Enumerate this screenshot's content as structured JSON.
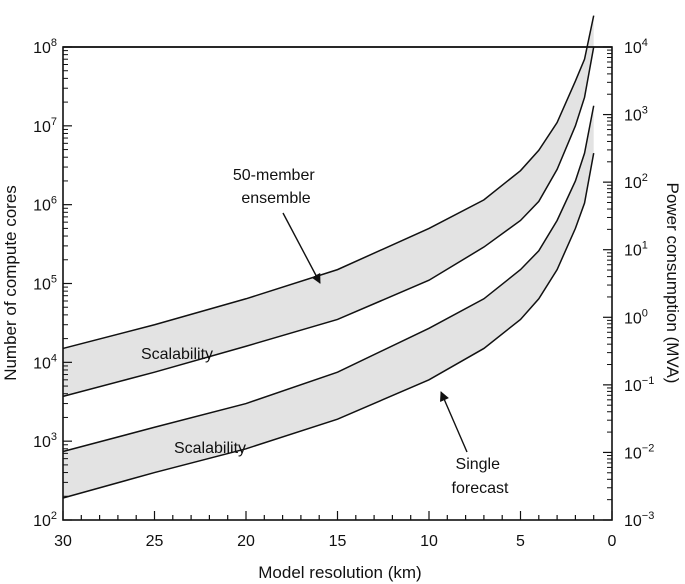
{
  "chart_data": {
    "type": "area",
    "xlabel": "Model resolution (km)",
    "ylabel": "Number of compute cores",
    "y2label": "Power consumption (MVA)",
    "xlim": [
      30,
      0
    ],
    "ylim": [
      100,
      100000000
    ],
    "yscale": "log",
    "y2lim": [
      0.001,
      10000
    ],
    "y2scale": "log",
    "x_ticks": [
      30,
      25,
      20,
      15,
      10,
      5,
      0
    ],
    "x_tick_labels": [
      "30",
      "25",
      "20",
      "15",
      "10",
      "5",
      "0"
    ],
    "y_ticks": [
      100,
      1000,
      10000,
      100000,
      1000000,
      10000000,
      100000000
    ],
    "y_tick_labels": [
      {
        "base": "10",
        "exp": "2"
      },
      {
        "base": "10",
        "exp": "3"
      },
      {
        "base": "10",
        "exp": "4"
      },
      {
        "base": "10",
        "exp": "5"
      },
      {
        "base": "10",
        "exp": "6"
      },
      {
        "base": "10",
        "exp": "7"
      },
      {
        "base": "10",
        "exp": "8"
      }
    ],
    "y2_ticks": [
      0.001,
      0.01,
      0.1,
      1,
      10,
      100,
      1000,
      10000
    ],
    "y2_tick_labels": [
      {
        "base": "10",
        "exp": "−3"
      },
      {
        "base": "10",
        "exp": "−2"
      },
      {
        "base": "10",
        "exp": "−1"
      },
      {
        "base": "10",
        "exp": "0"
      },
      {
        "base": "10",
        "exp": "1"
      },
      {
        "base": "10",
        "exp": "2"
      },
      {
        "base": "10",
        "exp": "3"
      },
      {
        "base": "10",
        "exp": "4"
      }
    ],
    "grid": false,
    "band_fill": "#e3e3e3",
    "line_color": "#111111",
    "series": [
      {
        "x": [
          30,
          25,
          20,
          15,
          10,
          7,
          5,
          4,
          3,
          2,
          1.5,
          1
        ],
        "upper": [
          15000,
          30000,
          64000,
          150000,
          500000,
          1150000,
          2700000,
          4900000,
          11000000,
          37000000,
          70000000,
          250000000
        ],
        "lower": [
          3700,
          7500,
          16000,
          35000,
          110000,
          290000,
          630000,
          1100000,
          2800000,
          10000000,
          23000000,
          100000000
        ]
      },
      {
        "x": [
          30,
          25,
          20,
          15,
          10,
          7,
          5,
          4,
          3,
          2,
          1.5,
          1
        ],
        "upper": [
          740,
          1500,
          3000,
          7500,
          27000,
          64000,
          150000,
          260000,
          630000,
          2000000,
          4500000,
          18000000
        ],
        "lower": [
          190,
          400,
          800,
          1900,
          6000,
          15000,
          35000,
          64000,
          150000,
          500000,
          1050000,
          4500000
        ]
      }
    ],
    "annotations": [
      {
        "text": "Scalability"
      },
      {
        "text": "Scalability"
      },
      {
        "lines": [
          "50-member",
          "ensemble"
        ]
      },
      {
        "lines": [
          "Single",
          "forecast"
        ]
      }
    ]
  }
}
